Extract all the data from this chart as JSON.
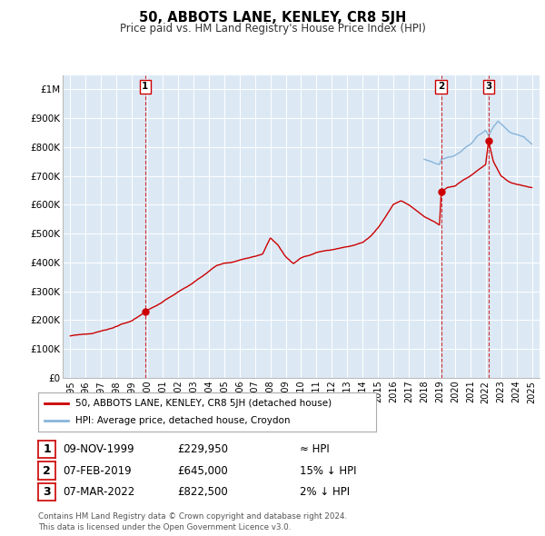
{
  "title": "50, ABBOTS LANE, KENLEY, CR8 5JH",
  "subtitle": "Price paid vs. HM Land Registry's House Price Index (HPI)",
  "background_color": "#dce9f5",
  "plot_bg_color": "#dce9f5",
  "outer_bg_color": "#ffffff",
  "hpi_line_color": "#89b4d9",
  "price_line_color": "#cc0000",
  "marker_color": "#cc0000",
  "dashed_line_color": "#cc0000",
  "ylim": [
    0,
    1050000
  ],
  "xlim_start": 1994.5,
  "xlim_end": 2025.5,
  "yticks": [
    0,
    100000,
    200000,
    300000,
    400000,
    500000,
    600000,
    700000,
    800000,
    900000,
    1000000
  ],
  "ytick_labels": [
    "£0",
    "£100K",
    "£200K",
    "£300K",
    "£400K",
    "£500K",
    "£600K",
    "£700K",
    "£800K",
    "£900K",
    "£1M"
  ],
  "xtick_years": [
    1995,
    1996,
    1997,
    1998,
    1999,
    2000,
    2001,
    2002,
    2003,
    2004,
    2005,
    2006,
    2007,
    2008,
    2009,
    2010,
    2011,
    2012,
    2013,
    2014,
    2015,
    2016,
    2017,
    2018,
    2019,
    2020,
    2021,
    2022,
    2023,
    2024,
    2025
  ],
  "sale_dates": [
    1999.86,
    2019.1,
    2022.18
  ],
  "sale_prices": [
    229950,
    645000,
    822500
  ],
  "sale_labels": [
    "1",
    "2",
    "3"
  ],
  "legend_label_red": "50, ABBOTS LANE, KENLEY, CR8 5JH (detached house)",
  "legend_label_blue": "HPI: Average price, detached house, Croydon",
  "table_rows": [
    {
      "num": "1",
      "date": "09-NOV-1999",
      "price": "£229,950",
      "hpi": "≈ HPI"
    },
    {
      "num": "2",
      "date": "07-FEB-2019",
      "price": "£645,000",
      "hpi": "15% ↓ HPI"
    },
    {
      "num": "3",
      "date": "07-MAR-2022",
      "price": "£822,500",
      "hpi": "2% ↓ HPI"
    }
  ],
  "footer": "Contains HM Land Registry data © Crown copyright and database right 2024.\nThis data is licensed under the Open Government Licence v3.0."
}
